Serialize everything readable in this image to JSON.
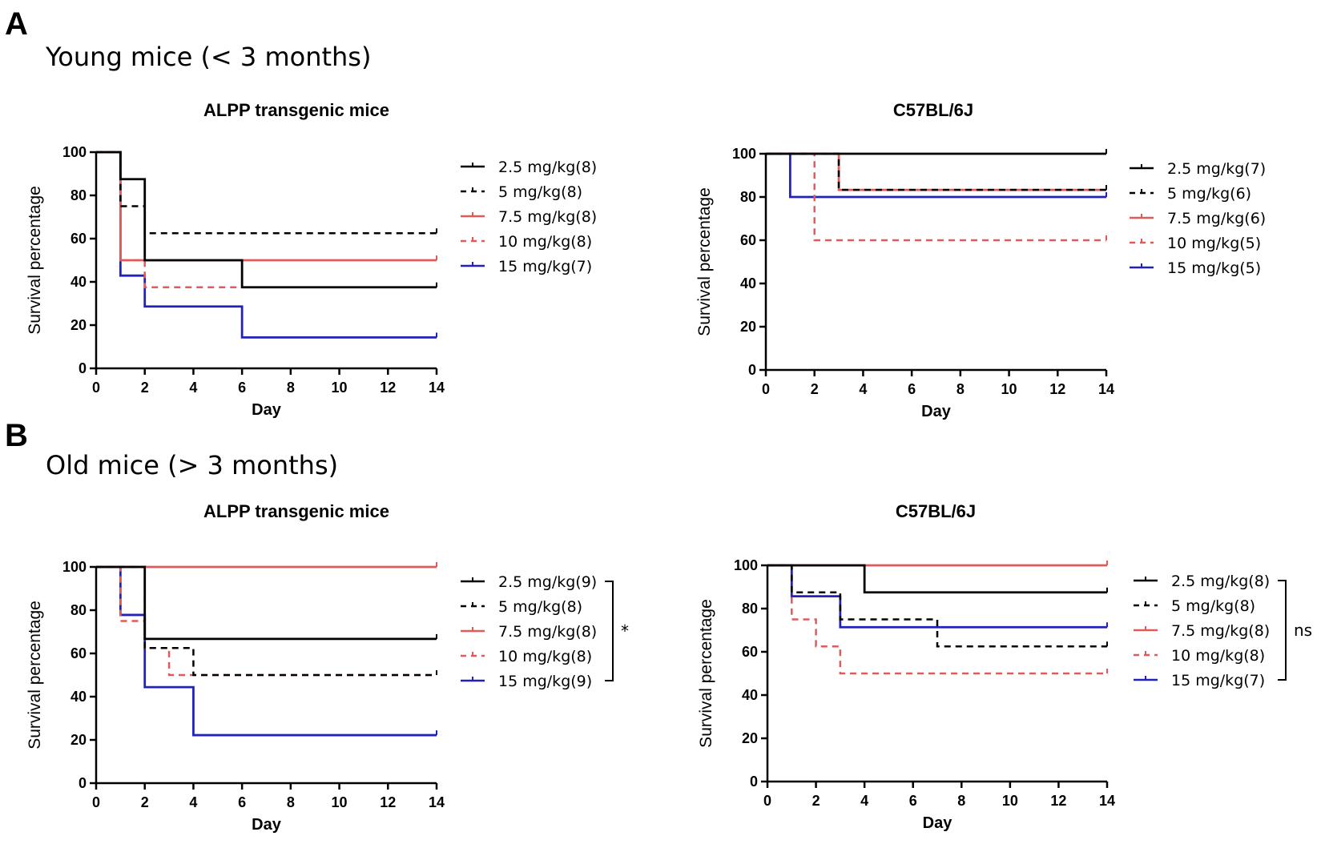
{
  "panels": [
    {
      "letter": "A",
      "subtitle": "Young mice (< 3 months)"
    },
    {
      "letter": "B",
      "subtitle": "Old mice (> 3 months)"
    }
  ],
  "chart_data": [
    {
      "id": "A-left",
      "panel": "A",
      "type": "line",
      "title": "ALPP transgenic mice",
      "xlabel": "Day",
      "ylabel": "Survival percentage",
      "xlim": [
        0,
        14
      ],
      "ylim": [
        0,
        100
      ],
      "xticks": [
        0,
        2,
        4,
        6,
        8,
        10,
        12,
        14
      ],
      "yticks": [
        0,
        20,
        40,
        60,
        80,
        100
      ],
      "series": [
        {
          "name": "2.5 mg/kg(8)",
          "color": "#000000",
          "dashed": false,
          "points": [
            [
              0,
              100
            ],
            [
              1,
              87.5
            ],
            [
              2,
              50
            ],
            [
              6,
              37.5
            ],
            [
              14,
              37.5
            ]
          ]
        },
        {
          "name": "5 mg/kg(8)",
          "color": "#000000",
          "dashed": true,
          "points": [
            [
              0,
              100
            ],
            [
              1,
              75
            ],
            [
              2,
              62.5
            ],
            [
              14,
              62.5
            ]
          ]
        },
        {
          "name": "7.5 mg/kg(8)",
          "color": "#e05a5a",
          "dashed": false,
          "points": [
            [
              0,
              100
            ],
            [
              1,
              50
            ],
            [
              14,
              50
            ]
          ]
        },
        {
          "name": "10 mg/kg(8)",
          "color": "#e05a5a",
          "dashed": true,
          "points": [
            [
              0,
              100
            ],
            [
              1,
              50
            ],
            [
              2,
              37.5
            ],
            [
              14,
              37.5
            ]
          ]
        },
        {
          "name": "15 mg/kg(7)",
          "color": "#2222bb",
          "dashed": false,
          "points": [
            [
              0,
              100
            ],
            [
              1,
              42.9
            ],
            [
              2,
              28.6
            ],
            [
              6,
              14.3
            ],
            [
              14,
              14.3
            ]
          ]
        }
      ],
      "significance": ""
    },
    {
      "id": "A-right",
      "panel": "A",
      "type": "line",
      "title": "C57BL/6J",
      "xlabel": "Day",
      "ylabel": "Survival percentage",
      "xlim": [
        0,
        14
      ],
      "ylim": [
        0,
        100
      ],
      "xticks": [
        0,
        2,
        4,
        6,
        8,
        10,
        12,
        14
      ],
      "yticks": [
        0,
        20,
        40,
        60,
        80,
        100
      ],
      "series": [
        {
          "name": "2.5 mg/kg(7)",
          "color": "#000000",
          "dashed": false,
          "points": [
            [
              0,
              100
            ],
            [
              14,
              100
            ]
          ]
        },
        {
          "name": "5 mg/kg(6)",
          "color": "#000000",
          "dashed": true,
          "points": [
            [
              0,
              100
            ],
            [
              3,
              83.3
            ],
            [
              14,
              83.3
            ]
          ]
        },
        {
          "name": "7.5 mg/kg(6)",
          "color": "#e05a5a",
          "dashed": false,
          "points": [
            [
              0,
              100
            ],
            [
              3,
              83.3
            ],
            [
              14,
              83.3
            ]
          ]
        },
        {
          "name": "10 mg/kg(5)",
          "color": "#e05a5a",
          "dashed": true,
          "points": [
            [
              0,
              100
            ],
            [
              2,
              60
            ],
            [
              14,
              60
            ]
          ]
        },
        {
          "name": "15 mg/kg(5)",
          "color": "#2222bb",
          "dashed": false,
          "points": [
            [
              0,
              100
            ],
            [
              1,
              80
            ],
            [
              14,
              80
            ]
          ]
        }
      ],
      "significance": ""
    },
    {
      "id": "B-left",
      "panel": "B",
      "type": "line",
      "title": "ALPP transgenic mice",
      "xlabel": "Day",
      "ylabel": "Survival percentage",
      "xlim": [
        0,
        14
      ],
      "ylim": [
        0,
        100
      ],
      "xticks": [
        0,
        2,
        4,
        6,
        8,
        10,
        12,
        14
      ],
      "yticks": [
        0,
        20,
        40,
        60,
        80,
        100
      ],
      "series": [
        {
          "name": "2.5 mg/kg(9)",
          "color": "#000000",
          "dashed": false,
          "points": [
            [
              0,
              100
            ],
            [
              2,
              66.7
            ],
            [
              14,
              66.7
            ]
          ]
        },
        {
          "name": "5 mg/kg(8)",
          "color": "#000000",
          "dashed": true,
          "points": [
            [
              0,
              100
            ],
            [
              2,
              62.5
            ],
            [
              4,
              50
            ],
            [
              14,
              50
            ]
          ]
        },
        {
          "name": "7.5 mg/kg(8)",
          "color": "#e05a5a",
          "dashed": false,
          "points": [
            [
              0,
              100
            ],
            [
              14,
              100
            ]
          ]
        },
        {
          "name": "10 mg/kg(8)",
          "color": "#e05a5a",
          "dashed": true,
          "points": [
            [
              0,
              100
            ],
            [
              1,
              75
            ],
            [
              2,
              62.5
            ],
            [
              3,
              50
            ],
            [
              14,
              50
            ]
          ]
        },
        {
          "name": "15 mg/kg(9)",
          "color": "#2222bb",
          "dashed": false,
          "points": [
            [
              0,
              100
            ],
            [
              1,
              77.8
            ],
            [
              2,
              44.4
            ],
            [
              4,
              22.2
            ],
            [
              14,
              22.2
            ]
          ]
        }
      ],
      "significance": "*"
    },
    {
      "id": "B-right",
      "panel": "B",
      "type": "line",
      "title": "C57BL/6J",
      "xlabel": "Day",
      "ylabel": "Survival percentage",
      "xlim": [
        0,
        14
      ],
      "ylim": [
        0,
        100
      ],
      "xticks": [
        0,
        2,
        4,
        6,
        8,
        10,
        12,
        14
      ],
      "yticks": [
        0,
        20,
        40,
        60,
        80,
        100
      ],
      "series": [
        {
          "name": "2.5 mg/kg(8)",
          "color": "#000000",
          "dashed": false,
          "points": [
            [
              0,
              100
            ],
            [
              4,
              87.5
            ],
            [
              14,
              87.5
            ]
          ]
        },
        {
          "name": "5 mg/kg(8)",
          "color": "#000000",
          "dashed": true,
          "points": [
            [
              0,
              100
            ],
            [
              1,
              87.5
            ],
            [
              3,
              75
            ],
            [
              7,
              62.5
            ],
            [
              14,
              62.5
            ]
          ]
        },
        {
          "name": "7.5 mg/kg(8)",
          "color": "#e05a5a",
          "dashed": false,
          "points": [
            [
              0,
              100
            ],
            [
              14,
              100
            ]
          ]
        },
        {
          "name": "10 mg/kg(8)",
          "color": "#e05a5a",
          "dashed": true,
          "points": [
            [
              0,
              100
            ],
            [
              1,
              75
            ],
            [
              2,
              62.5
            ],
            [
              3,
              50
            ],
            [
              14,
              50
            ]
          ]
        },
        {
          "name": "15 mg/kg(7)",
          "color": "#2222bb",
          "dashed": false,
          "points": [
            [
              0,
              100
            ],
            [
              1,
              85.7
            ],
            [
              3,
              71.4
            ],
            [
              14,
              71.4
            ]
          ]
        }
      ],
      "significance": "ns"
    }
  ]
}
